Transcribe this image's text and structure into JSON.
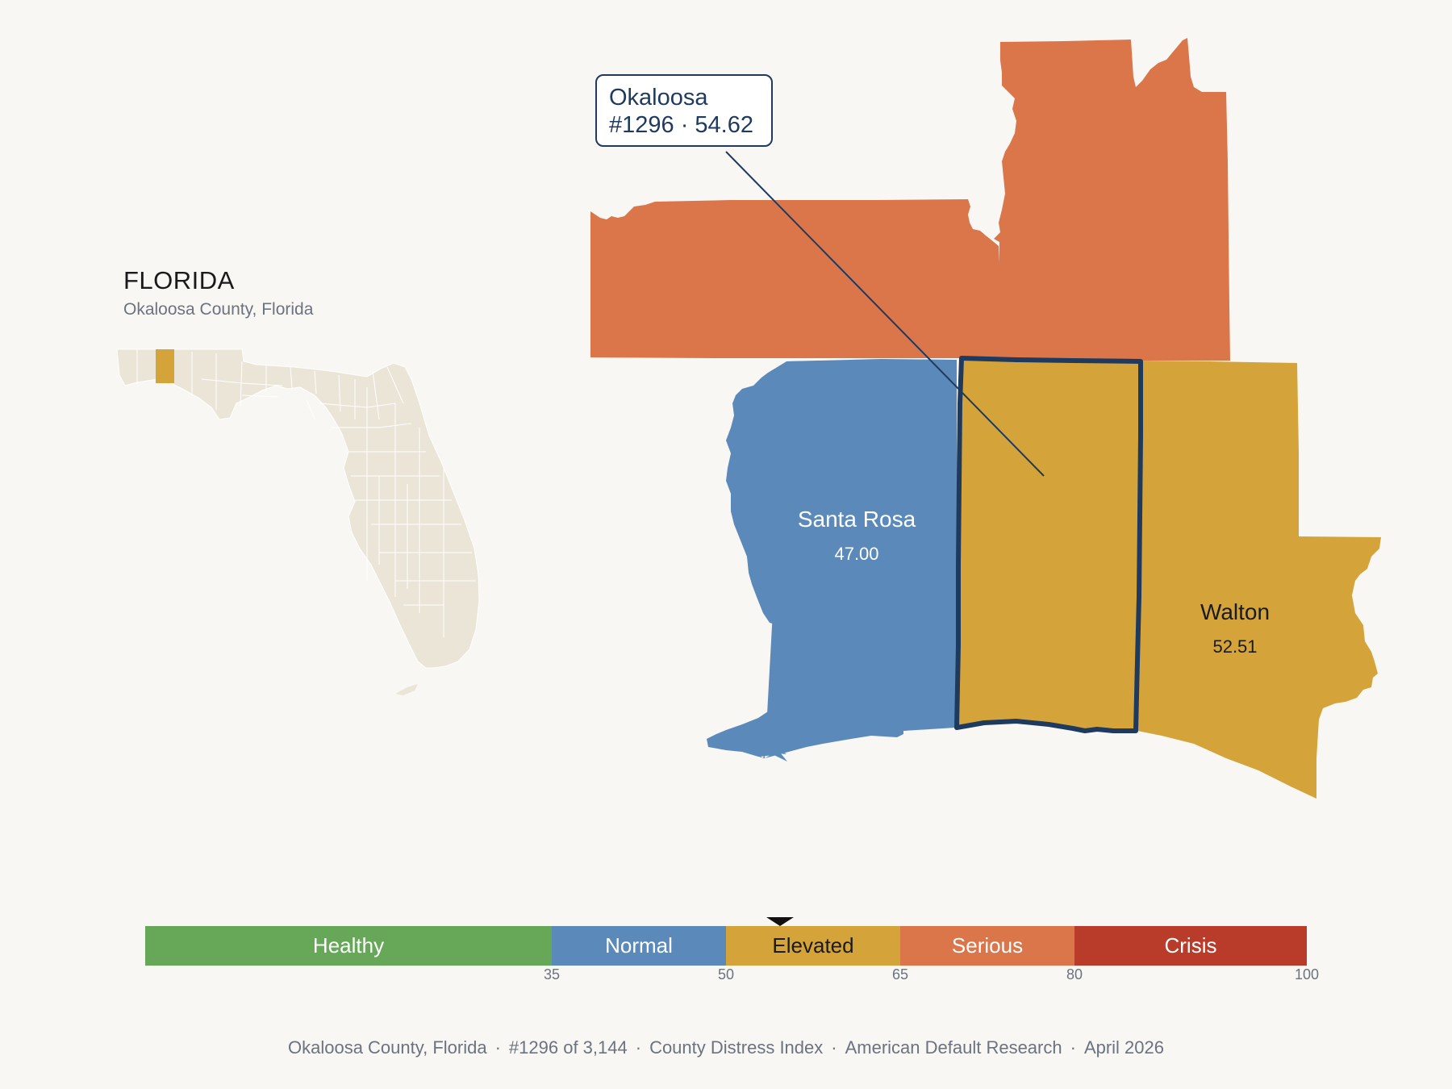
{
  "state": {
    "title": "FLORIDA",
    "subtitle": "Okaloosa County, Florida"
  },
  "selected": {
    "name": "Okaloosa",
    "detail": "#1296 · 54.62",
    "rank": 1296,
    "score": 54.62,
    "category": "Elevated"
  },
  "neighbors": [
    {
      "name": "Santa Rosa",
      "value": "47.00",
      "category": "Normal"
    },
    {
      "name": "Walton",
      "value": "52.51",
      "category": "Elevated"
    }
  ],
  "unlabeled_neighbors": [
    {
      "id": "west-north",
      "category": "Serious"
    },
    {
      "id": "east-north",
      "category": "Serious"
    }
  ],
  "colors": {
    "healthy": "#66a758",
    "normal": "#5b8aba",
    "elevated": "#d4a43a",
    "serious": "#da764a",
    "crisis": "#b93b2a",
    "outline": "#1f3a5f",
    "inset_land": "#ebe5d8"
  },
  "legend": {
    "segments": [
      {
        "label": "Healthy",
        "from": 0,
        "to": 35,
        "color": "#66a758"
      },
      {
        "label": "Normal",
        "from": 35,
        "to": 50,
        "color": "#5b8aba"
      },
      {
        "label": "Elevated",
        "from": 50,
        "to": 65,
        "color": "#d4a43a"
      },
      {
        "label": "Serious",
        "from": 65,
        "to": 80,
        "color": "#da764a"
      },
      {
        "label": "Crisis",
        "from": 80,
        "to": 100,
        "color": "#b93b2a"
      }
    ],
    "ticks": [
      "35",
      "50",
      "65",
      "80",
      "100"
    ],
    "pointer_value": 54.62
  },
  "footer": {
    "county": "Okaloosa County, Florida",
    "rank": "#1296 of 3,144",
    "index": "County Distress Index",
    "source": "American Default Research",
    "date": "April 2026"
  }
}
